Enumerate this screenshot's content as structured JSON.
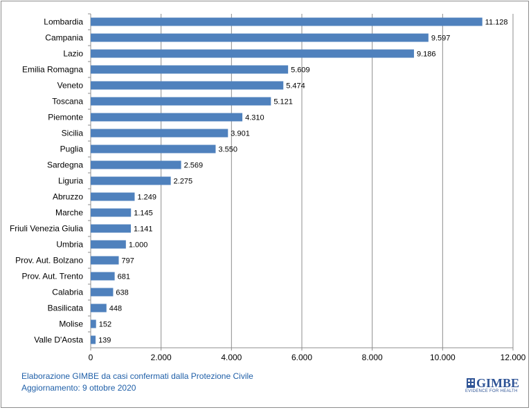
{
  "chart_data": {
    "type": "bar",
    "orientation": "horizontal",
    "categories": [
      "Lombardia",
      "Campania",
      "Lazio",
      "Emilia Romagna",
      "Veneto",
      "Toscana",
      "Piemonte",
      "Sicilia",
      "Puglia",
      "Sardegna",
      "Liguria",
      "Abruzzo",
      "Marche",
      "Friuli Venezia Giulia",
      "Umbria",
      "Prov. Aut. Bolzano",
      "Prov. Aut. Trento",
      "Calabria",
      "Basilicata",
      "Molise",
      "Valle D'Aosta"
    ],
    "values": [
      11128,
      9597,
      9186,
      5609,
      5474,
      5121,
      4310,
      3901,
      3550,
      2569,
      2275,
      1249,
      1145,
      1141,
      1000,
      797,
      681,
      638,
      448,
      152,
      139
    ],
    "value_labels": [
      "11.128",
      "9.597",
      "9.186",
      "5.609",
      "5.474",
      "5.121",
      "4.310",
      "3.901",
      "3.550",
      "2.569",
      "2.275",
      "1.249",
      "1.145",
      "1.141",
      "1.000",
      "797",
      "681",
      "638",
      "448",
      "152",
      "139"
    ],
    "xlim": [
      0,
      12000
    ],
    "xticks": [
      0,
      2000,
      4000,
      6000,
      8000,
      10000,
      12000
    ],
    "xtick_labels": [
      "0",
      "2.000",
      "4.000",
      "6.000",
      "8.000",
      "10.000",
      "12.000"
    ],
    "grid": "vertical",
    "bar_color": "#4f81bd",
    "title": "",
    "xlabel": "",
    "ylabel": ""
  },
  "footnote": {
    "line1": "Elaborazione GIMBE da casi confermati dalla Protezione Civile",
    "line2": "Aggiornamento: 9 ottobre 2020"
  },
  "logo": {
    "name": "GIMBE",
    "tagline": "EVIDENCE FOR HEALTH",
    "color": "#2f5496"
  }
}
